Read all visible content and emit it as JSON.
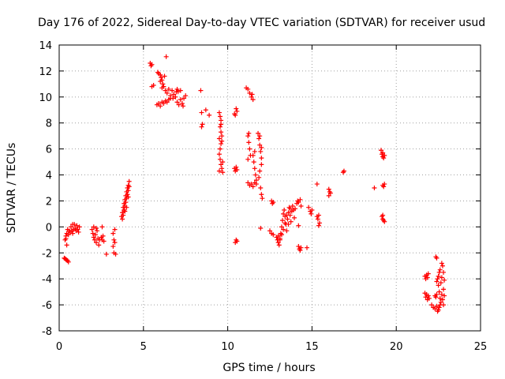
{
  "chart_data": {
    "type": "scatter",
    "title": "Day 176 of 2022, Sidereal Day-to-day VTEC variation (SDTVAR) for receiver usud",
    "xlabel": "GPS time / hours",
    "ylabel": "SDTVAR / TECUs",
    "xlim": [
      0,
      25
    ],
    "ylim": [
      -8,
      14
    ],
    "xticks": [
      "0",
      "5",
      "10",
      "15",
      "20",
      "25"
    ],
    "yticks": [
      "-8",
      "-6",
      "-4",
      "-2",
      "0",
      "2",
      "4",
      "6",
      "8",
      "10",
      "12",
      "14"
    ],
    "grid": true,
    "marker": "plus",
    "color": "#ff0000",
    "series": [
      {
        "name": "SDTVAR",
        "points": [
          [
            0.3,
            -2.4
          ],
          [
            0.4,
            -2.5
          ],
          [
            0.5,
            -2.6
          ],
          [
            0.55,
            -2.7
          ],
          [
            0.45,
            -2.55
          ],
          [
            0.35,
            -2.45
          ],
          [
            0.35,
            -1.0
          ],
          [
            0.4,
            -0.7
          ],
          [
            0.45,
            -0.5
          ],
          [
            0.5,
            -0.2
          ],
          [
            0.55,
            -0.6
          ],
          [
            0.6,
            -0.3
          ],
          [
            0.45,
            -1.4
          ],
          [
            0.4,
            -0.9
          ],
          [
            0.7,
            0.0
          ],
          [
            0.75,
            -0.3
          ],
          [
            0.8,
            -0.5
          ],
          [
            0.85,
            -0.2
          ],
          [
            0.9,
            0.2
          ],
          [
            0.95,
            -0.1
          ],
          [
            1.0,
            -0.3
          ],
          [
            1.05,
            0.1
          ],
          [
            1.1,
            -0.2
          ],
          [
            1.15,
            -0.4
          ],
          [
            1.2,
            0.0
          ],
          [
            0.8,
            0.2
          ],
          [
            0.65,
            -0.4
          ],
          [
            1.95,
            -0.2
          ],
          [
            2.0,
            -0.5
          ],
          [
            2.05,
            -0.8
          ],
          [
            2.1,
            -1.0
          ],
          [
            2.15,
            -0.6
          ],
          [
            2.2,
            -1.2
          ],
          [
            2.25,
            -0.3
          ],
          [
            2.3,
            -0.9
          ],
          [
            2.35,
            -1.4
          ],
          [
            2.05,
            0.0
          ],
          [
            2.4,
            -1.0
          ],
          [
            2.2,
            -0.1
          ],
          [
            2.5,
            -0.8
          ],
          [
            2.55,
            -1.0
          ],
          [
            2.6,
            -0.7
          ],
          [
            2.55,
            0.0
          ],
          [
            2.65,
            -1.1
          ],
          [
            2.8,
            -2.1
          ],
          [
            3.2,
            -0.5
          ],
          [
            3.25,
            -1.0
          ],
          [
            3.2,
            -1.5
          ],
          [
            3.25,
            -2.0
          ],
          [
            3.35,
            -2.1
          ],
          [
            3.3,
            -0.2
          ],
          [
            3.3,
            -1.2
          ],
          [
            3.7,
            0.8
          ],
          [
            3.75,
            1.1
          ],
          [
            3.8,
            1.5
          ],
          [
            3.85,
            1.8
          ],
          [
            3.9,
            2.1
          ],
          [
            3.95,
            2.4
          ],
          [
            4.0,
            2.7
          ],
          [
            4.05,
            3.0
          ],
          [
            4.1,
            3.2
          ],
          [
            4.15,
            3.5
          ],
          [
            3.8,
            0.9
          ],
          [
            3.85,
            1.3
          ],
          [
            3.9,
            1.6
          ],
          [
            3.95,
            1.9
          ],
          [
            4.0,
            2.2
          ],
          [
            4.05,
            2.5
          ],
          [
            4.1,
            2.8
          ],
          [
            3.75,
            0.6
          ],
          [
            4.0,
            1.5
          ],
          [
            3.9,
            1.2
          ],
          [
            4.1,
            2.3
          ],
          [
            4.15,
            3.1
          ],
          [
            5.4,
            12.6
          ],
          [
            5.5,
            12.5
          ],
          [
            5.45,
            12.4
          ],
          [
            5.5,
            10.8
          ],
          [
            5.6,
            10.9
          ],
          [
            5.85,
            11.9
          ],
          [
            5.9,
            11.8
          ],
          [
            6.0,
            11.7
          ],
          [
            6.05,
            11.5
          ],
          [
            6.1,
            11.3
          ],
          [
            6.15,
            11.0
          ],
          [
            6.2,
            10.8
          ],
          [
            6.25,
            11.6
          ],
          [
            6.3,
            10.5
          ],
          [
            6.35,
            13.1
          ],
          [
            6.0,
            11.2
          ],
          [
            6.1,
            10.7
          ],
          [
            6.4,
            10.3
          ],
          [
            6.5,
            10.6
          ],
          [
            6.6,
            10.1
          ],
          [
            6.7,
            10.5
          ],
          [
            6.8,
            10.2
          ],
          [
            6.75,
            9.9
          ],
          [
            6.9,
            10.0
          ],
          [
            6.95,
            10.4
          ],
          [
            7.0,
            10.6
          ],
          [
            7.05,
            10.4
          ],
          [
            5.8,
            9.4
          ],
          [
            5.9,
            9.5
          ],
          [
            6.0,
            9.3
          ],
          [
            6.1,
            9.6
          ],
          [
            6.2,
            9.5
          ],
          [
            6.3,
            9.7
          ],
          [
            6.4,
            9.6
          ],
          [
            6.5,
            9.8
          ],
          [
            6.6,
            9.9
          ],
          [
            7.0,
            9.6
          ],
          [
            7.1,
            9.4
          ],
          [
            7.2,
            9.8
          ],
          [
            7.3,
            9.5
          ],
          [
            7.4,
            9.9
          ],
          [
            7.5,
            10.1
          ],
          [
            7.2,
            10.5
          ],
          [
            7.35,
            9.3
          ],
          [
            8.4,
            10.5
          ],
          [
            8.45,
            8.8
          ],
          [
            8.5,
            7.9
          ],
          [
            8.45,
            7.7
          ],
          [
            8.7,
            9.0
          ],
          [
            8.9,
            8.6
          ],
          [
            9.5,
            8.8
          ],
          [
            9.55,
            8.5
          ],
          [
            9.6,
            8.2
          ],
          [
            9.55,
            7.7
          ],
          [
            9.6,
            7.3
          ],
          [
            9.65,
            7.0
          ],
          [
            9.5,
            6.8
          ],
          [
            9.6,
            6.4
          ],
          [
            9.55,
            6.0
          ],
          [
            9.5,
            5.6
          ],
          [
            9.55,
            5.2
          ],
          [
            9.6,
            4.8
          ],
          [
            9.65,
            4.5
          ],
          [
            9.5,
            4.3
          ],
          [
            9.6,
            7.9
          ],
          [
            9.65,
            6.6
          ],
          [
            9.7,
            5.0
          ],
          [
            9.7,
            4.2
          ],
          [
            10.4,
            8.7
          ],
          [
            10.5,
            9.1
          ],
          [
            10.55,
            8.9
          ],
          [
            10.45,
            8.6
          ],
          [
            10.4,
            4.5
          ],
          [
            10.45,
            4.3
          ],
          [
            10.5,
            4.6
          ],
          [
            10.55,
            4.4
          ],
          [
            10.5,
            -1.0
          ],
          [
            10.45,
            -1.2
          ],
          [
            10.55,
            -1.1
          ],
          [
            11.1,
            10.7
          ],
          [
            11.2,
            10.6
          ],
          [
            11.3,
            10.3
          ],
          [
            11.4,
            10.0
          ],
          [
            11.5,
            9.8
          ],
          [
            11.45,
            10.2
          ],
          [
            11.2,
            7.0
          ],
          [
            11.25,
            6.5
          ],
          [
            11.3,
            6.0
          ],
          [
            11.35,
            5.5
          ],
          [
            11.2,
            5.2
          ],
          [
            11.25,
            7.2
          ],
          [
            11.2,
            3.4
          ],
          [
            11.3,
            3.2
          ],
          [
            11.4,
            3.3
          ],
          [
            11.5,
            3.1
          ],
          [
            11.6,
            3.4
          ],
          [
            11.7,
            3.3
          ],
          [
            11.5,
            5.5
          ],
          [
            11.55,
            5.0
          ],
          [
            11.6,
            4.5
          ],
          [
            11.65,
            4.0
          ],
          [
            11.7,
            3.6
          ],
          [
            11.6,
            5.8
          ],
          [
            11.8,
            7.2
          ],
          [
            11.85,
            6.8
          ],
          [
            11.9,
            6.3
          ],
          [
            11.95,
            5.8
          ],
          [
            12.0,
            5.3
          ],
          [
            12.0,
            4.8
          ],
          [
            11.9,
            4.3
          ],
          [
            11.85,
            3.8
          ],
          [
            11.95,
            3.0
          ],
          [
            12.0,
            2.5
          ],
          [
            12.05,
            2.2
          ],
          [
            11.9,
            7.0
          ],
          [
            12.0,
            6.1
          ],
          [
            11.95,
            -0.1
          ],
          [
            12.6,
            2.0
          ],
          [
            12.65,
            1.8
          ],
          [
            12.7,
            1.9
          ],
          [
            12.5,
            -0.3
          ],
          [
            12.6,
            -0.5
          ],
          [
            12.7,
            -0.6
          ],
          [
            12.9,
            -0.8
          ],
          [
            12.95,
            -1.0
          ],
          [
            13.0,
            -1.2
          ],
          [
            13.05,
            -1.4
          ],
          [
            13.1,
            -1.0
          ],
          [
            13.15,
            -0.5
          ],
          [
            13.2,
            0.0
          ],
          [
            13.25,
            0.5
          ],
          [
            13.3,
            1.0
          ],
          [
            13.35,
            1.3
          ],
          [
            13.4,
            0.8
          ],
          [
            13.45,
            0.2
          ],
          [
            13.5,
            -0.3
          ],
          [
            13.55,
            0.6
          ],
          [
            13.6,
            1.1
          ],
          [
            13.65,
            1.5
          ],
          [
            13.7,
            0.9
          ],
          [
            13.75,
            0.4
          ],
          [
            13.8,
            1.2
          ],
          [
            13.85,
            1.6
          ],
          [
            13.9,
            1.3
          ],
          [
            13.95,
            0.7
          ],
          [
            14.0,
            1.4
          ],
          [
            13.2,
            -0.6
          ],
          [
            13.3,
            -0.2
          ],
          [
            13.4,
            0.3
          ],
          [
            13.1,
            -0.9
          ],
          [
            13.0,
            -0.7
          ],
          [
            13.5,
            0.9
          ],
          [
            13.6,
            0.2
          ],
          [
            13.7,
            1.4
          ],
          [
            14.1,
            1.8
          ],
          [
            14.15,
            2.0
          ],
          [
            14.2,
            1.9
          ],
          [
            14.3,
            2.1
          ],
          [
            14.35,
            1.6
          ],
          [
            14.2,
            0.1
          ],
          [
            14.2,
            -1.5
          ],
          [
            14.25,
            -1.7
          ],
          [
            14.3,
            -1.8
          ],
          [
            14.35,
            -1.6
          ],
          [
            14.7,
            -1.6
          ],
          [
            14.8,
            1.5
          ],
          [
            14.9,
            1.2
          ],
          [
            15.0,
            1.3
          ],
          [
            14.95,
            1.0
          ],
          [
            15.3,
            0.8
          ],
          [
            15.35,
            0.6
          ],
          [
            15.4,
            0.9
          ],
          [
            15.4,
            0.1
          ],
          [
            15.45,
            0.3
          ],
          [
            15.3,
            3.3
          ],
          [
            16.0,
            2.9
          ],
          [
            16.05,
            2.7
          ],
          [
            16.1,
            2.6
          ],
          [
            16.0,
            2.4
          ],
          [
            16.9,
            4.3
          ],
          [
            16.85,
            4.2
          ],
          [
            18.7,
            3.0
          ],
          [
            19.1,
            5.9
          ],
          [
            19.15,
            5.6
          ],
          [
            19.2,
            5.4
          ],
          [
            19.25,
            5.3
          ],
          [
            19.3,
            5.5
          ],
          [
            19.2,
            5.7
          ],
          [
            19.2,
            3.2
          ],
          [
            19.3,
            3.3
          ],
          [
            19.25,
            3.1
          ],
          [
            19.15,
            0.8
          ],
          [
            19.2,
            0.6
          ],
          [
            19.25,
            0.5
          ],
          [
            19.3,
            0.4
          ],
          [
            19.2,
            0.9
          ],
          [
            21.7,
            -3.8
          ],
          [
            21.75,
            -4.0
          ],
          [
            21.8,
            -3.7
          ],
          [
            21.85,
            -3.9
          ],
          [
            21.9,
            -3.6
          ],
          [
            21.7,
            -5.1
          ],
          [
            21.75,
            -5.4
          ],
          [
            21.8,
            -5.2
          ],
          [
            21.85,
            -5.6
          ],
          [
            21.9,
            -5.3
          ],
          [
            21.95,
            -5.5
          ],
          [
            22.1,
            -6.0
          ],
          [
            22.2,
            -6.2
          ],
          [
            22.3,
            -6.3
          ],
          [
            22.4,
            -6.1
          ],
          [
            22.3,
            -5.3
          ],
          [
            22.35,
            -5.4
          ],
          [
            22.4,
            -5.2
          ],
          [
            22.35,
            -2.3
          ],
          [
            22.4,
            -2.4
          ],
          [
            22.4,
            -4.2
          ],
          [
            22.45,
            -4.0
          ],
          [
            22.5,
            -3.8
          ],
          [
            22.55,
            -3.5
          ],
          [
            22.5,
            -4.5
          ],
          [
            22.55,
            -5.0
          ],
          [
            22.6,
            -5.5
          ],
          [
            22.65,
            -5.8
          ],
          [
            22.5,
            -6.4
          ],
          [
            22.55,
            -6.2
          ],
          [
            22.6,
            -6.0
          ],
          [
            22.65,
            -4.3
          ],
          [
            22.7,
            -3.9
          ],
          [
            22.7,
            -5.2
          ],
          [
            22.75,
            -5.6
          ],
          [
            22.8,
            -6.0
          ],
          [
            22.75,
            -3.0
          ],
          [
            22.8,
            -3.5
          ],
          [
            22.7,
            -2.8
          ],
          [
            22.8,
            -4.8
          ],
          [
            22.85,
            -5.3
          ],
          [
            22.85,
            -4.1
          ],
          [
            22.6,
            -3.3
          ],
          [
            22.45,
            -6.5
          ]
        ]
      }
    ]
  }
}
